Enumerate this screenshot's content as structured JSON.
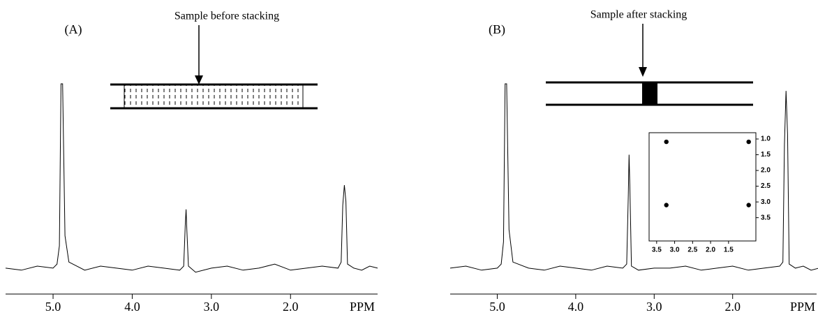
{
  "chart_data": [
    {
      "type": "line",
      "panel_label": "(A)",
      "title": "Sample before stacking",
      "xlabel": "PPM",
      "x": [
        5.6,
        5.4,
        5.2,
        5.0,
        4.95,
        4.92,
        4.9,
        4.88,
        4.85,
        4.8,
        4.6,
        4.4,
        4.2,
        4.0,
        3.8,
        3.6,
        3.4,
        3.35,
        3.33,
        3.32,
        3.31,
        3.29,
        3.2,
        3.0,
        2.8,
        2.6,
        2.4,
        2.2,
        2.0,
        1.8,
        1.6,
        1.4,
        1.36,
        1.34,
        1.32,
        1.3,
        1.28,
        1.2,
        1.1,
        1.0,
        0.9
      ],
      "values": [
        9,
        8,
        10,
        9,
        11,
        20,
        100,
        100,
        25,
        12,
        8,
        10,
        9,
        8,
        10,
        9,
        8,
        10,
        30,
        38,
        28,
        10,
        7,
        9,
        10,
        8,
        9,
        11,
        8,
        9,
        10,
        9,
        12,
        40,
        50,
        42,
        11,
        9,
        8,
        10,
        9
      ],
      "color": "#000000",
      "xlim": [
        5.6,
        0.9
      ],
      "ylim": [
        0,
        100
      ],
      "xticks": [
        {
          "value": 5,
          "label": "5.0"
        },
        {
          "value": 4,
          "label": "4.0"
        },
        {
          "value": 3,
          "label": "3.0"
        },
        {
          "value": 2,
          "label": "2.0"
        }
      ]
    },
    {
      "type": "line",
      "panel_label": "(B)",
      "title": "Sample after  stacking",
      "xlabel": "PPM",
      "x": [
        5.6,
        5.4,
        5.2,
        5.0,
        4.95,
        4.92,
        4.9,
        4.88,
        4.85,
        4.8,
        4.6,
        4.4,
        4.2,
        4.0,
        3.8,
        3.6,
        3.4,
        3.35,
        3.33,
        3.32,
        3.31,
        3.29,
        3.2,
        3.0,
        2.8,
        2.6,
        2.4,
        2.2,
        2.0,
        1.8,
        1.6,
        1.4,
        1.36,
        1.34,
        1.32,
        1.3,
        1.28,
        1.2,
        1.1,
        1.0,
        0.9
      ],
      "values": [
        9,
        10,
        8,
        9,
        11,
        22,
        100,
        100,
        28,
        12,
        9,
        8,
        10,
        9,
        8,
        10,
        9,
        11,
        45,
        65,
        50,
        10,
        8,
        9,
        9,
        10,
        8,
        9,
        10,
        8,
        9,
        10,
        12,
        70,
        96.5,
        75,
        11,
        9,
        10,
        8,
        9
      ],
      "color": "#000000",
      "xlim": [
        5.6,
        0.93
      ],
      "ylim": [
        0,
        100
      ],
      "xticks": [
        {
          "value": 5,
          "label": "5.0"
        },
        {
          "value": 4,
          "label": "4.0"
        },
        {
          "value": 3,
          "label": "3.0"
        },
        {
          "value": 2,
          "label": "2.0"
        }
      ]
    },
    {
      "type": "scatter",
      "x": [
        3.23,
        0.94,
        3.23,
        0.94
      ],
      "values": [
        1.09,
        1.09,
        3.1,
        3.1
      ],
      "color": "#000000",
      "xlim": [
        3.71,
        0.74
      ],
      "ylim": [
        4.24,
        0.8
      ],
      "xticks": [
        {
          "value": 3.5,
          "label": "3.5"
        },
        {
          "value": 3,
          "label": "3.0"
        },
        {
          "value": 2.5,
          "label": "2.5"
        },
        {
          "value": 2,
          "label": "2.0"
        },
        {
          "value": 1.5,
          "label": "1.5"
        }
      ],
      "yticks": [
        {
          "value": 1,
          "label": "1.0"
        },
        {
          "value": 1.5,
          "label": "1.5"
        },
        {
          "value": 2,
          "label": "2.0"
        },
        {
          "value": 2.5,
          "label": "2.5"
        },
        {
          "value": 3,
          "label": "3.0"
        },
        {
          "value": 3.5,
          "label": "3.5"
        }
      ]
    }
  ]
}
